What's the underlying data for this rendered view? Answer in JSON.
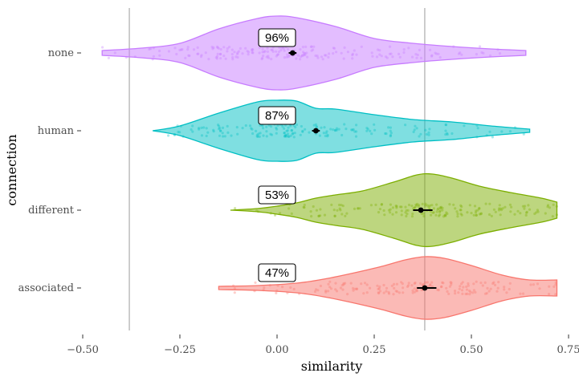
{
  "chart_data": {
    "type": "violin",
    "orientation": "horizontal",
    "xlabel": "similarity",
    "ylabel": "connection",
    "xlim": [
      -0.5,
      0.75
    ],
    "xticks": [
      -0.5,
      -0.25,
      0.0,
      0.25,
      0.5,
      0.75
    ],
    "xtick_labels": [
      "−0.50",
      "−0.25",
      "0.00",
      "0.25",
      "0.50",
      "0.75"
    ],
    "reference_lines_x": [
      -0.38,
      0.38
    ],
    "grid": false,
    "categories": [
      "none",
      "human",
      "different",
      "associated"
    ],
    "series": [
      {
        "name": "none",
        "color": "#C77CFF",
        "percent_label": "96%",
        "label_x": 0.0,
        "mean": 0.04,
        "ci": [
          0.03,
          0.05
        ],
        "range": [
          -0.45,
          0.64
        ],
        "profile": [
          [
            -0.45,
            0.03
          ],
          [
            -0.35,
            0.06
          ],
          [
            -0.25,
            0.12
          ],
          [
            -0.15,
            0.3
          ],
          [
            -0.05,
            0.43
          ],
          [
            0.0,
            0.46
          ],
          [
            0.05,
            0.44
          ],
          [
            0.15,
            0.33
          ],
          [
            0.25,
            0.18
          ],
          [
            0.35,
            0.12
          ],
          [
            0.45,
            0.08
          ],
          [
            0.55,
            0.05
          ],
          [
            0.64,
            0.03
          ]
        ]
      },
      {
        "name": "human",
        "color": "#00BFC4",
        "percent_label": "87%",
        "label_x": 0.0,
        "mean": 0.1,
        "ci": [
          0.09,
          0.11
        ],
        "range": [
          -0.32,
          0.65
        ],
        "profile": [
          [
            -0.32,
            0.0
          ],
          [
            -0.25,
            0.06
          ],
          [
            -0.15,
            0.22
          ],
          [
            -0.05,
            0.36
          ],
          [
            0.0,
            0.38
          ],
          [
            0.05,
            0.37
          ],
          [
            0.1,
            0.28
          ],
          [
            0.15,
            0.27
          ],
          [
            0.25,
            0.2
          ],
          [
            0.35,
            0.14
          ],
          [
            0.45,
            0.11
          ],
          [
            0.55,
            0.06
          ],
          [
            0.65,
            0.02
          ]
        ]
      },
      {
        "name": "different",
        "color": "#7CAE00",
        "percent_label": "53%",
        "label_x": 0.0,
        "mean": 0.37,
        "ci": [
          0.35,
          0.4
        ],
        "range": [
          -0.12,
          0.72
        ],
        "profile": [
          [
            -0.12,
            0.0
          ],
          [
            -0.05,
            0.02
          ],
          [
            0.0,
            0.05
          ],
          [
            0.05,
            0.09
          ],
          [
            0.1,
            0.15
          ],
          [
            0.15,
            0.19
          ],
          [
            0.22,
            0.24
          ],
          [
            0.3,
            0.35
          ],
          [
            0.36,
            0.44
          ],
          [
            0.4,
            0.45
          ],
          [
            0.45,
            0.4
          ],
          [
            0.52,
            0.3
          ],
          [
            0.6,
            0.22
          ],
          [
            0.68,
            0.15
          ],
          [
            0.72,
            0.1
          ]
        ]
      },
      {
        "name": "associated",
        "color": "#F8766D",
        "percent_label": "47%",
        "label_x": 0.0,
        "mean": 0.38,
        "ci": [
          0.36,
          0.41
        ],
        "range": [
          -0.15,
          0.72
        ],
        "profile": [
          [
            -0.15,
            0.02
          ],
          [
            -0.05,
            0.03
          ],
          [
            0.05,
            0.06
          ],
          [
            0.12,
            0.11
          ],
          [
            0.2,
            0.19
          ],
          [
            0.27,
            0.27
          ],
          [
            0.33,
            0.35
          ],
          [
            0.38,
            0.39
          ],
          [
            0.43,
            0.37
          ],
          [
            0.5,
            0.28
          ],
          [
            0.58,
            0.16
          ],
          [
            0.65,
            0.1
          ],
          [
            0.72,
            0.1
          ]
        ]
      }
    ]
  }
}
